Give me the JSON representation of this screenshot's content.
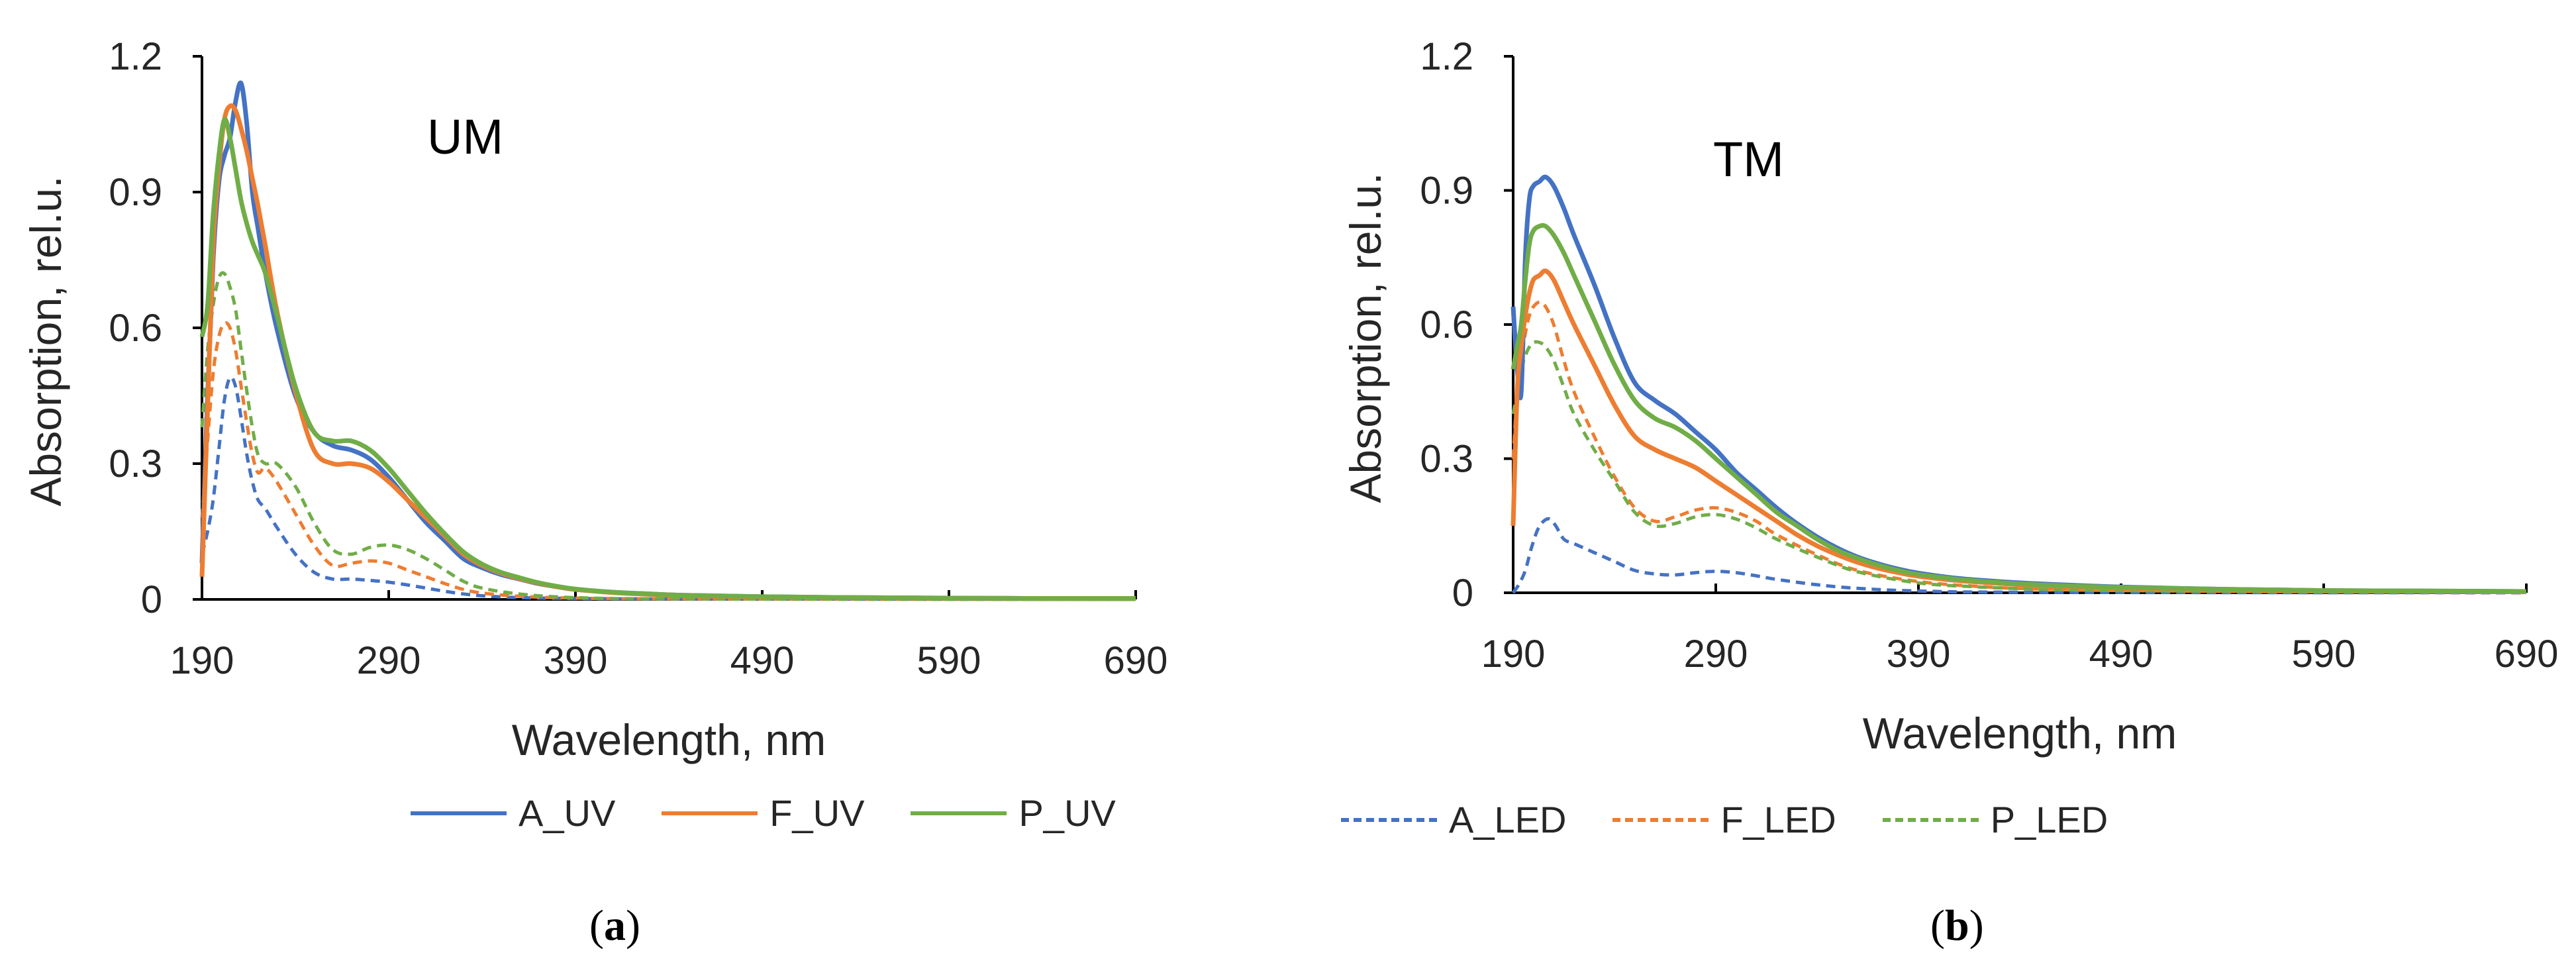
{
  "chart_data": [
    {
      "type": "line",
      "panel_caption_open": "(",
      "panel_caption_letter": "a",
      "panel_caption_close": ")",
      "annotation": "UM",
      "xlabel": "Wavelength, nm",
      "ylabel": "Absorption, rel.u.",
      "xlim": [
        190,
        690
      ],
      "ylim": [
        0,
        1.2
      ],
      "xticks": [
        "190",
        "290",
        "390",
        "490",
        "590",
        "690"
      ],
      "yticks": [
        "0",
        "0.3",
        "0.6",
        "0.9",
        "1.2"
      ],
      "grid": false,
      "legend_position": "bottom",
      "series": [
        {
          "name": "A_UV",
          "color": "#4472C4",
          "style": "solid",
          "x": [
            190,
            193,
            196,
            199,
            202,
            205,
            208,
            211,
            214,
            217,
            220,
            224,
            230,
            240,
            250,
            260,
            270,
            280,
            290,
            300,
            310,
            320,
            330,
            340,
            350,
            360,
            370,
            380,
            390,
            410,
            430,
            450,
            490,
            540,
            590,
            640,
            690
          ],
          "y": [
            0.08,
            0.45,
            0.75,
            0.92,
            0.98,
            1.02,
            1.1,
            1.14,
            1.05,
            0.9,
            0.82,
            0.72,
            0.6,
            0.45,
            0.37,
            0.34,
            0.33,
            0.31,
            0.27,
            0.22,
            0.17,
            0.13,
            0.09,
            0.07,
            0.055,
            0.045,
            0.035,
            0.028,
            0.022,
            0.016,
            0.012,
            0.009,
            0.006,
            0.004,
            0.003,
            0.002,
            0.002
          ]
        },
        {
          "name": "F_UV",
          "color": "#ED7D31",
          "style": "solid",
          "x": [
            190,
            193,
            196,
            199,
            202,
            205,
            208,
            211,
            214,
            217,
            220,
            224,
            230,
            240,
            250,
            260,
            270,
            280,
            290,
            300,
            310,
            320,
            330,
            340,
            350,
            360,
            370,
            380,
            390,
            410,
            430,
            450,
            490,
            540,
            590,
            640,
            690
          ],
          "y": [
            0.05,
            0.42,
            0.78,
            0.95,
            1.06,
            1.09,
            1.08,
            1.04,
            0.99,
            0.93,
            0.87,
            0.78,
            0.64,
            0.46,
            0.33,
            0.3,
            0.3,
            0.29,
            0.26,
            0.22,
            0.18,
            0.14,
            0.1,
            0.075,
            0.058,
            0.046,
            0.036,
            0.028,
            0.022,
            0.015,
            0.011,
            0.008,
            0.005,
            0.004,
            0.003,
            0.002,
            0.002
          ]
        },
        {
          "name": "P_UV",
          "color": "#70AD47",
          "style": "solid",
          "x": [
            190,
            193,
            196,
            199,
            202,
            205,
            208,
            211,
            214,
            217,
            220,
            224,
            230,
            240,
            250,
            260,
            270,
            280,
            290,
            300,
            310,
            320,
            330,
            340,
            350,
            360,
            370,
            380,
            390,
            410,
            430,
            450,
            490,
            540,
            590,
            640,
            690
          ],
          "y": [
            0.58,
            0.65,
            0.85,
            0.98,
            1.06,
            1.02,
            0.95,
            0.88,
            0.83,
            0.79,
            0.76,
            0.72,
            0.63,
            0.47,
            0.37,
            0.35,
            0.35,
            0.33,
            0.29,
            0.24,
            0.19,
            0.145,
            0.105,
            0.078,
            0.06,
            0.048,
            0.037,
            0.029,
            0.023,
            0.016,
            0.012,
            0.009,
            0.006,
            0.004,
            0.003,
            0.002,
            0.002
          ]
        },
        {
          "name": "A_LED",
          "color": "#4472C4",
          "style": "dashed",
          "x": [
            190,
            193,
            196,
            199,
            202,
            205,
            208,
            211,
            214,
            217,
            220,
            224,
            230,
            240,
            250,
            260,
            270,
            280,
            290,
            300,
            310,
            320,
            330,
            340,
            360,
            390,
            450,
            690
          ],
          "y": [
            0.1,
            0.15,
            0.22,
            0.33,
            0.44,
            0.49,
            0.47,
            0.4,
            0.32,
            0.26,
            0.22,
            0.2,
            0.16,
            0.1,
            0.06,
            0.045,
            0.045,
            0.042,
            0.038,
            0.032,
            0.025,
            0.018,
            0.012,
            0.008,
            0.004,
            0.002,
            0.001,
            0.0
          ]
        },
        {
          "name": "F_LED",
          "color": "#ED7D31",
          "style": "dashed",
          "x": [
            190,
            193,
            196,
            199,
            202,
            205,
            208,
            211,
            214,
            217,
            220,
            224,
            230,
            240,
            250,
            260,
            270,
            280,
            290,
            300,
            310,
            320,
            330,
            340,
            360,
            390,
            450,
            690
          ],
          "y": [
            0.18,
            0.35,
            0.5,
            0.58,
            0.61,
            0.6,
            0.55,
            0.47,
            0.39,
            0.32,
            0.28,
            0.29,
            0.26,
            0.19,
            0.12,
            0.075,
            0.08,
            0.085,
            0.08,
            0.065,
            0.05,
            0.035,
            0.022,
            0.014,
            0.007,
            0.003,
            0.001,
            0.0
          ]
        },
        {
          "name": "P_LED",
          "color": "#70AD47",
          "style": "dashed",
          "x": [
            190,
            193,
            196,
            199,
            202,
            205,
            208,
            211,
            214,
            217,
            220,
            224,
            230,
            240,
            250,
            260,
            270,
            280,
            290,
            300,
            310,
            320,
            330,
            340,
            360,
            390,
            450,
            690
          ],
          "y": [
            0.38,
            0.55,
            0.65,
            0.71,
            0.72,
            0.69,
            0.64,
            0.55,
            0.46,
            0.38,
            0.32,
            0.3,
            0.3,
            0.25,
            0.17,
            0.11,
            0.1,
            0.115,
            0.12,
            0.11,
            0.09,
            0.065,
            0.04,
            0.025,
            0.012,
            0.004,
            0.001,
            0.0
          ]
        }
      ]
    },
    {
      "type": "line",
      "panel_caption_open": "(",
      "panel_caption_letter": "b",
      "panel_caption_close": ")",
      "annotation": "TM",
      "xlabel": "Wavelength, nm",
      "ylabel": "Absorption, rel.u.",
      "xlim": [
        190,
        690
      ],
      "ylim": [
        0,
        1.2
      ],
      "xticks": [
        "190",
        "290",
        "390",
        "490",
        "590",
        "690"
      ],
      "yticks": [
        "0",
        "0.3",
        "0.6",
        "0.9",
        "1.2"
      ],
      "grid": false,
      "legend_position": "bottom",
      "series": [
        {
          "name": "A_UV",
          "color": "#4472C4",
          "style": "solid",
          "x": [
            190,
            192,
            194,
            196,
            198,
            200,
            203,
            206,
            210,
            215,
            220,
            230,
            240,
            250,
            260,
            270,
            280,
            290,
            300,
            310,
            320,
            330,
            340,
            350,
            360,
            370,
            380,
            390,
            410,
            430,
            450,
            490,
            540,
            590,
            640,
            690
          ],
          "y": [
            0.64,
            0.5,
            0.45,
            0.75,
            0.88,
            0.91,
            0.92,
            0.93,
            0.91,
            0.86,
            0.8,
            0.69,
            0.57,
            0.47,
            0.43,
            0.4,
            0.36,
            0.32,
            0.27,
            0.23,
            0.19,
            0.155,
            0.125,
            0.1,
            0.08,
            0.065,
            0.053,
            0.044,
            0.032,
            0.025,
            0.02,
            0.013,
            0.008,
            0.005,
            0.004,
            0.003
          ]
        },
        {
          "name": "F_UV",
          "color": "#ED7D31",
          "style": "solid",
          "x": [
            190,
            192,
            194,
            196,
            198,
            200,
            203,
            206,
            210,
            215,
            220,
            230,
            240,
            250,
            260,
            270,
            280,
            290,
            300,
            310,
            320,
            330,
            340,
            350,
            360,
            370,
            380,
            390,
            410,
            430,
            450,
            490,
            540,
            590,
            640,
            690
          ],
          "y": [
            0.15,
            0.45,
            0.55,
            0.62,
            0.67,
            0.7,
            0.71,
            0.72,
            0.7,
            0.65,
            0.6,
            0.51,
            0.42,
            0.35,
            0.32,
            0.3,
            0.28,
            0.25,
            0.22,
            0.19,
            0.16,
            0.13,
            0.105,
            0.085,
            0.068,
            0.055,
            0.045,
            0.037,
            0.027,
            0.021,
            0.016,
            0.011,
            0.007,
            0.005,
            0.003,
            0.002
          ]
        },
        {
          "name": "P_UV",
          "color": "#70AD47",
          "style": "solid",
          "x": [
            190,
            192,
            194,
            196,
            198,
            200,
            203,
            206,
            210,
            215,
            220,
            230,
            240,
            250,
            260,
            270,
            280,
            290,
            300,
            310,
            320,
            330,
            340,
            350,
            360,
            370,
            380,
            390,
            410,
            430,
            450,
            490,
            540,
            590,
            640,
            690
          ],
          "y": [
            0.5,
            0.55,
            0.6,
            0.7,
            0.78,
            0.81,
            0.82,
            0.82,
            0.8,
            0.76,
            0.71,
            0.61,
            0.51,
            0.43,
            0.39,
            0.37,
            0.34,
            0.3,
            0.26,
            0.22,
            0.18,
            0.15,
            0.12,
            0.095,
            0.077,
            0.062,
            0.05,
            0.041,
            0.03,
            0.023,
            0.018,
            0.012,
            0.008,
            0.005,
            0.004,
            0.003
          ]
        },
        {
          "name": "A_LED",
          "color": "#4472C4",
          "style": "dashed",
          "x": [
            190,
            193,
            196,
            199,
            202,
            205,
            208,
            211,
            215,
            220,
            225,
            230,
            240,
            250,
            260,
            270,
            280,
            290,
            300,
            310,
            320,
            340,
            360,
            390,
            450,
            690
          ],
          "y": [
            0.0,
            0.02,
            0.05,
            0.1,
            0.14,
            0.16,
            0.165,
            0.15,
            0.12,
            0.11,
            0.1,
            0.09,
            0.07,
            0.05,
            0.042,
            0.04,
            0.045,
            0.048,
            0.045,
            0.038,
            0.03,
            0.018,
            0.01,
            0.004,
            0.001,
            0.0
          ]
        },
        {
          "name": "F_LED",
          "color": "#ED7D31",
          "style": "dashed",
          "x": [
            190,
            192,
            194,
            196,
            198,
            200,
            203,
            206,
            210,
            215,
            220,
            230,
            240,
            250,
            260,
            270,
            280,
            290,
            300,
            310,
            320,
            340,
            360,
            390,
            420,
            450,
            490,
            590,
            690
          ],
          "y": [
            0.3,
            0.45,
            0.52,
            0.58,
            0.62,
            0.64,
            0.65,
            0.64,
            0.6,
            0.52,
            0.45,
            0.35,
            0.26,
            0.19,
            0.16,
            0.17,
            0.185,
            0.19,
            0.18,
            0.16,
            0.13,
            0.085,
            0.05,
            0.025,
            0.014,
            0.008,
            0.005,
            0.002,
            0.001
          ]
        },
        {
          "name": "P_LED",
          "color": "#70AD47",
          "style": "dashed",
          "x": [
            190,
            192,
            194,
            196,
            198,
            200,
            203,
            206,
            210,
            215,
            220,
            230,
            240,
            250,
            260,
            270,
            280,
            290,
            300,
            310,
            320,
            340,
            360,
            390,
            420,
            450,
            490,
            590,
            690
          ],
          "y": [
            0.4,
            0.45,
            0.5,
            0.53,
            0.55,
            0.56,
            0.56,
            0.55,
            0.52,
            0.46,
            0.4,
            0.32,
            0.25,
            0.18,
            0.15,
            0.155,
            0.17,
            0.175,
            0.165,
            0.145,
            0.12,
            0.08,
            0.047,
            0.022,
            0.013,
            0.008,
            0.005,
            0.002,
            0.001
          ]
        }
      ]
    }
  ]
}
